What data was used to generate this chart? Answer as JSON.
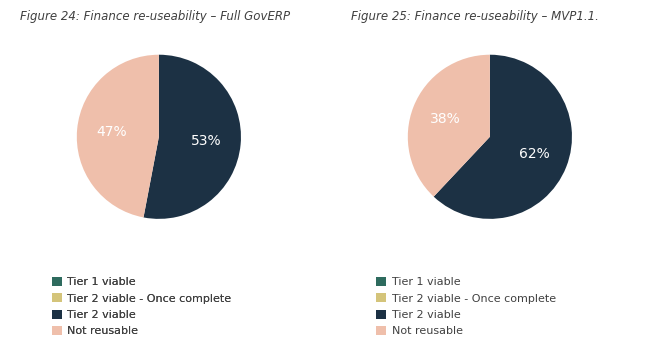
{
  "fig24_title": "Figure 24: Finance re-useability – Full GovERP",
  "fig25_title": "Figure 25: Finance re-useability – MVP1.1.",
  "chart1_values": [
    53,
    47
  ],
  "chart2_values": [
    62,
    38
  ],
  "slice_colors": [
    "#1c3144",
    "#efbfab"
  ],
  "legend_items": [
    {
      "label": "Tier 1 viable",
      "color": "#2e6b5e"
    },
    {
      "label": "Tier 2 viable - Once complete",
      "color": "#d4c47a"
    },
    {
      "label": "Tier 2 viable",
      "color": "#1c3144"
    },
    {
      "label": "Not reusable",
      "color": "#efbfab"
    }
  ],
  "title_fontsize": 8.5,
  "label_fontsize": 10,
  "legend_fontsize": 8,
  "background_color": "#ffffff",
  "text_color": "#404040"
}
